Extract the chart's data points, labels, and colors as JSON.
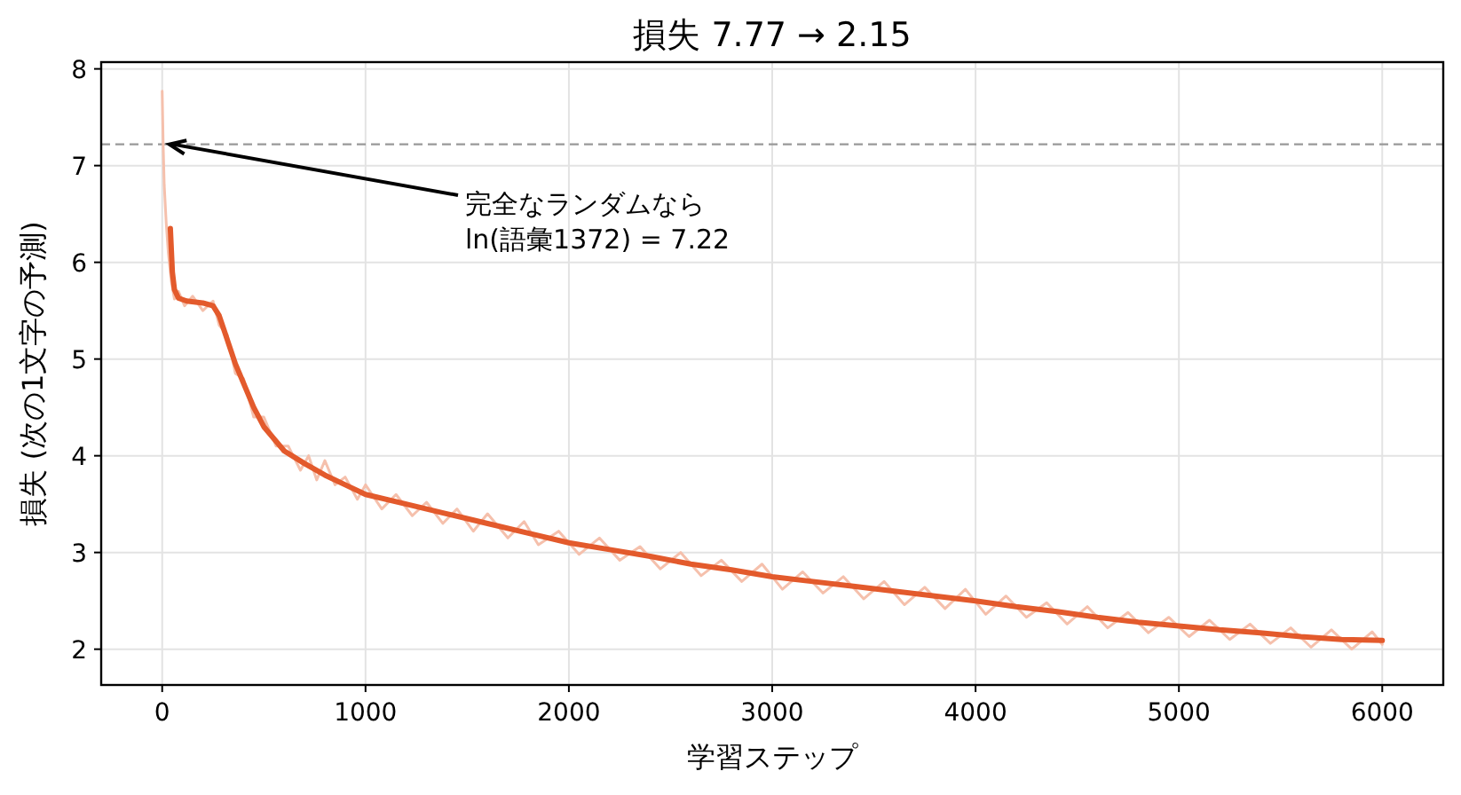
{
  "chart_data": {
    "type": "line",
    "title": "損失 7.77 → 2.15",
    "xlabel": "学習ステップ",
    "ylabel": "損失 (次の1文字の予測)",
    "xlim": [
      -300,
      6300
    ],
    "ylim": [
      1.63,
      8.07
    ],
    "xticks": [
      0,
      1000,
      2000,
      3000,
      4000,
      5000,
      6000
    ],
    "yticks": [
      2,
      3,
      4,
      5,
      6,
      7,
      8
    ],
    "grid": true,
    "ref_lines": [
      {
        "axis": "y",
        "value": 7.22,
        "color": "#999999",
        "line_style": "dashed"
      }
    ],
    "annotations": [
      {
        "text": "完全なランダムなら\nln(語彙1372) = 7.22",
        "x": 35,
        "y": 7.22
      }
    ],
    "series": [
      {
        "color": "#f5c0ac",
        "x": [
          0,
          5,
          10,
          20,
          30,
          45,
          60,
          80,
          110,
          150,
          200,
          250,
          280,
          320,
          360,
          400,
          450,
          500,
          560,
          620,
          680,
          720,
          760,
          800,
          850,
          900,
          960,
          1000,
          1080,
          1150,
          1230,
          1300,
          1380,
          1450,
          1530,
          1600,
          1700,
          1780,
          1850,
          1950,
          2050,
          2150,
          2250,
          2350,
          2450,
          2550,
          2650,
          2750,
          2850,
          2950,
          3050,
          3150,
          3250,
          3350,
          3450,
          3550,
          3650,
          3750,
          3850,
          3950,
          4050,
          4150,
          4250,
          4350,
          4450,
          4550,
          4650,
          4750,
          4850,
          4950,
          5050,
          5150,
          5250,
          5350,
          5450,
          5550,
          5650,
          5750,
          5850,
          5950,
          6000
        ],
        "values": [
          7.77,
          7.2,
          6.8,
          6.4,
          6.1,
          5.8,
          5.62,
          5.7,
          5.55,
          5.65,
          5.5,
          5.6,
          5.35,
          5.25,
          4.85,
          4.8,
          4.4,
          4.4,
          4.1,
          4.1,
          3.85,
          4.0,
          3.75,
          3.95,
          3.7,
          3.78,
          3.55,
          3.7,
          3.45,
          3.6,
          3.38,
          3.52,
          3.3,
          3.45,
          3.22,
          3.4,
          3.15,
          3.32,
          3.08,
          3.22,
          2.98,
          3.15,
          2.92,
          3.06,
          2.83,
          3.0,
          2.76,
          2.92,
          2.7,
          2.88,
          2.62,
          2.8,
          2.58,
          2.75,
          2.52,
          2.7,
          2.46,
          2.64,
          2.42,
          2.62,
          2.36,
          2.55,
          2.33,
          2.48,
          2.26,
          2.44,
          2.22,
          2.38,
          2.17,
          2.33,
          2.13,
          2.3,
          2.1,
          2.26,
          2.06,
          2.22,
          2.02,
          2.2,
          2.0,
          2.18,
          2.05
        ]
      },
      {
        "color": "#e35a2c",
        "x": [
          40,
          50,
          60,
          80,
          120,
          200,
          250,
          280,
          320,
          360,
          400,
          450,
          500,
          600,
          700,
          800,
          900,
          1000,
          1200,
          1400,
          1600,
          1800,
          2000,
          2200,
          2400,
          2600,
          2800,
          3000,
          3200,
          3400,
          3600,
          3800,
          4000,
          4200,
          4400,
          4600,
          4800,
          5000,
          5200,
          5400,
          5600,
          5800,
          6000
        ],
        "values": [
          6.35,
          5.9,
          5.72,
          5.63,
          5.6,
          5.58,
          5.55,
          5.45,
          5.2,
          4.95,
          4.75,
          4.5,
          4.3,
          4.05,
          3.92,
          3.8,
          3.7,
          3.6,
          3.5,
          3.4,
          3.3,
          3.2,
          3.1,
          3.03,
          2.96,
          2.88,
          2.82,
          2.75,
          2.7,
          2.65,
          2.6,
          2.55,
          2.5,
          2.44,
          2.39,
          2.33,
          2.28,
          2.24,
          2.2,
          2.17,
          2.13,
          2.1,
          2.09
        ]
      }
    ]
  }
}
